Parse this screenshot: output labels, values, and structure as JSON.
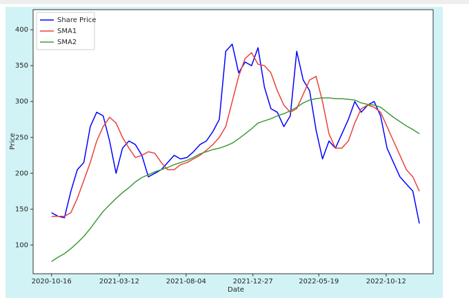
{
  "chart_data": {
    "type": "line",
    "x_label": "Date",
    "y_label": "Price",
    "x": [
      "2020-10-16",
      "2020-10-30",
      "2020-11-13",
      "2020-11-27",
      "2020-12-11",
      "2020-12-25",
      "2021-01-08",
      "2021-01-22",
      "2021-02-05",
      "2021-02-19",
      "2021-03-05",
      "2021-03-19",
      "2021-04-02",
      "2021-04-16",
      "2021-04-30",
      "2021-05-14",
      "2021-05-28",
      "2021-06-11",
      "2021-06-25",
      "2021-07-09",
      "2021-07-23",
      "2021-08-06",
      "2021-08-20",
      "2021-09-03",
      "2021-09-17",
      "2021-10-01",
      "2021-10-15",
      "2021-10-29",
      "2021-11-12",
      "2021-11-26",
      "2021-12-10",
      "2021-12-24",
      "2022-01-07",
      "2022-01-21",
      "2022-02-04",
      "2022-02-18",
      "2022-03-04",
      "2022-03-18",
      "2022-04-01",
      "2022-04-15",
      "2022-04-29",
      "2022-05-13",
      "2022-05-27",
      "2022-06-10",
      "2022-06-24",
      "2022-07-08",
      "2022-07-22",
      "2022-08-05",
      "2022-08-19",
      "2022-09-02",
      "2022-09-16",
      "2022-09-30",
      "2022-10-14",
      "2022-10-28",
      "2022-11-11",
      "2022-11-25",
      "2022-12-09",
      "2022-12-23"
    ],
    "series": [
      {
        "name": "Share Price",
        "color": "#0000ff",
        "values": [
          145,
          140,
          138,
          175,
          205,
          215,
          265,
          285,
          280,
          245,
          200,
          235,
          245,
          240,
          225,
          195,
          200,
          205,
          215,
          225,
          220,
          222,
          230,
          240,
          245,
          258,
          275,
          370,
          380,
          340,
          355,
          350,
          375,
          320,
          290,
          285,
          265,
          280,
          370,
          330,
          315,
          260,
          220,
          245,
          235,
          255,
          275,
          300,
          285,
          295,
          300,
          280,
          235,
          215,
          195,
          185,
          175,
          130
        ]
      },
      {
        "name": "SMA1",
        "color": "#e8413a",
        "values": [
          140,
          140,
          140,
          145,
          165,
          190,
          215,
          245,
          265,
          278,
          270,
          250,
          235,
          222,
          225,
          230,
          228,
          215,
          205,
          205,
          212,
          215,
          220,
          225,
          232,
          240,
          250,
          265,
          300,
          335,
          360,
          368,
          352,
          350,
          340,
          315,
          295,
          285,
          290,
          310,
          330,
          335,
          300,
          255,
          235,
          235,
          245,
          270,
          290,
          295,
          292,
          285,
          265,
          245,
          225,
          205,
          195,
          175
        ]
      },
      {
        "name": "SMA2",
        "color": "#3f9a3a",
        "values": [
          77,
          83,
          88,
          95,
          103,
          112,
          123,
          135,
          147,
          156,
          165,
          173,
          180,
          188,
          194,
          198,
          202,
          205,
          208,
          212,
          215,
          218,
          222,
          227,
          230,
          233,
          235,
          238,
          242,
          248,
          255,
          262,
          270,
          273,
          276,
          280,
          283,
          287,
          292,
          298,
          302,
          304,
          305,
          305,
          304,
          304,
          303,
          302,
          298,
          296,
          295,
          292,
          285,
          278,
          272,
          266,
          261,
          255
        ]
      }
    ],
    "xlim": [
      "2020-09-06",
      "2023-01-22"
    ],
    "xticks": [
      "2020-10-16",
      "2021-03-12",
      "2021-08-04",
      "2021-12-27",
      "2022-05-19",
      "2022-10-12"
    ],
    "ylim": [
      60,
      428
    ],
    "yticks": [
      100,
      150,
      200,
      250,
      300,
      350,
      400
    ],
    "legend": "upper left"
  }
}
